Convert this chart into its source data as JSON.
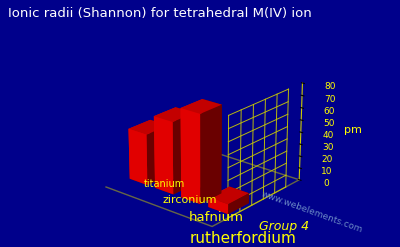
{
  "title": "Ionic radii (Shannon) for tetrahedral M(IV) ion",
  "title_color": "#ffffff",
  "title_fontsize": 9.5,
  "background_color": "#00008B",
  "elements": [
    "titanium",
    "zirconium",
    "hafnium",
    "rutherfordium"
  ],
  "values": [
    42,
    59,
    72,
    8
  ],
  "bar_color": "#ff0000",
  "ylabel": "pm",
  "ylabel_color": "#ffff00",
  "tick_color": "#ffff00",
  "grid_color": "#cccc00",
  "element_label_color": "#ffff00",
  "group_label": "Group 4",
  "group_label_color": "#ffff00",
  "watermark": "www.webelements.com",
  "watermark_color": "#7799cc",
  "ylim": [
    0,
    80
  ],
  "yticks": [
    0,
    10,
    20,
    30,
    40,
    50,
    60,
    70,
    80
  ],
  "elev": 22,
  "azim": -50
}
